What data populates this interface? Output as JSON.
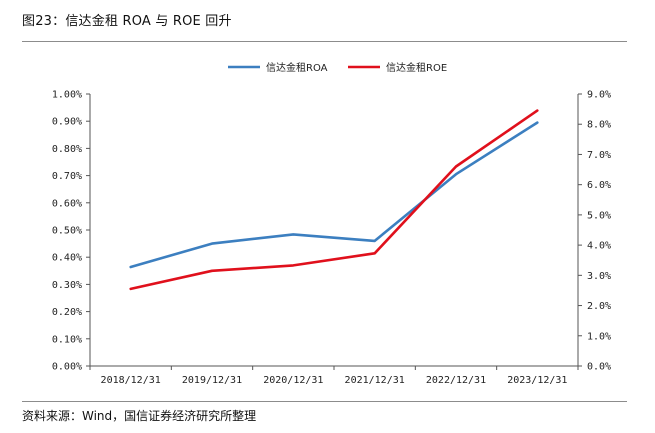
{
  "figure": {
    "title": "图23：信达金租 ROA 与 ROE 回升",
    "source": "资料来源：Wind，国信证券经济研究所整理"
  },
  "chart_data": {
    "type": "line",
    "categories": [
      "2018/12/31",
      "2019/12/31",
      "2020/12/31",
      "2021/12/31",
      "2022/12/31",
      "2023/12/31"
    ],
    "series": [
      {
        "name": "信达金租ROA",
        "axis": "left",
        "color": "#3c7fc0",
        "values": [
          0.364,
          0.45,
          0.484,
          0.46,
          0.705,
          0.895
        ]
      },
      {
        "name": "信达金租ROE",
        "axis": "right",
        "color": "#e0101c",
        "values": [
          2.55,
          3.15,
          3.33,
          3.73,
          6.6,
          8.45
        ]
      }
    ],
    "y_left": {
      "range": [
        0,
        1.0
      ],
      "ticks": [
        "0.00%",
        "0.10%",
        "0.20%",
        "0.30%",
        "0.40%",
        "0.50%",
        "0.60%",
        "0.70%",
        "0.80%",
        "0.90%",
        "1.00%"
      ]
    },
    "y_right": {
      "range": [
        0,
        9.0
      ],
      "ticks": [
        "0.0%",
        "1.0%",
        "2.0%",
        "3.0%",
        "4.0%",
        "5.0%",
        "6.0%",
        "7.0%",
        "8.0%",
        "9.0%"
      ]
    },
    "grid": false,
    "legend_position": "top-center"
  }
}
